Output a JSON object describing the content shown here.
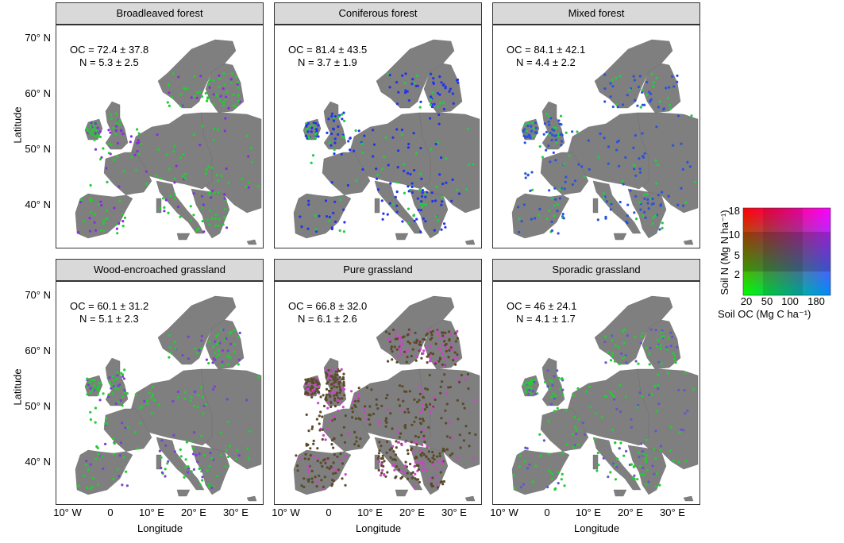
{
  "panels": [
    {
      "title": "Broadleaved forest",
      "oc": "OC = 72.4 ± 37.8",
      "n": "N = 5.3 ± 2.5",
      "dominant": "#22cc33",
      "secondary": "#8a2be2"
    },
    {
      "title": "Coniferous forest",
      "oc": "OC = 81.4 ± 43.5",
      "n": "N = 3.7 ± 1.9",
      "dominant": "#2233ee",
      "secondary": "#22cc44"
    },
    {
      "title": "Mixed forest",
      "oc": "OC = 84.1 ± 42.1",
      "n": "N = 4.4 ± 2.2",
      "dominant": "#2a52e0",
      "secondary": "#22cc44"
    },
    {
      "title": "Wood-encroached grassland",
      "oc": "OC = 60.1 ± 31.2",
      "n": "N = 5.1 ± 2.3",
      "dominant": "#22cc33",
      "secondary": "#7a40d8"
    },
    {
      "title": "Pure grassland",
      "oc": "OC = 66.8 ± 32.0",
      "n": "N = 6.1 ± 2.6",
      "dominant": "#5a4a2a",
      "secondary": "#cc44cc"
    },
    {
      "title": "Sporadic grassland",
      "oc": "OC = 46 ± 24.1",
      "n": "N = 4.1 ± 1.7",
      "dominant": "#22cc33",
      "secondary": "#6655cc"
    }
  ],
  "axes": {
    "y_title": "Latitude",
    "x_title": "Longitude",
    "y_ticks": [
      "70° N",
      "60° N",
      "50° N",
      "40° N"
    ],
    "x_ticks": [
      "10° W",
      "0",
      "10° E",
      "20° E",
      "30° E"
    ]
  },
  "legend": {
    "y_title": "Soil N  (Mg N ha⁻¹)",
    "x_title": "Soil OC  (Mg C ha⁻¹)",
    "y_ticks": [
      "18",
      "10",
      "5",
      "2"
    ],
    "x_ticks": [
      "20",
      "50",
      "100",
      "180"
    ],
    "colors": {
      "low_low": "#00ff00",
      "low_high": "#ff0000",
      "high_low": "#0088ff",
      "high_high": "#ff00ff",
      "land": "#7f7f7f"
    }
  }
}
